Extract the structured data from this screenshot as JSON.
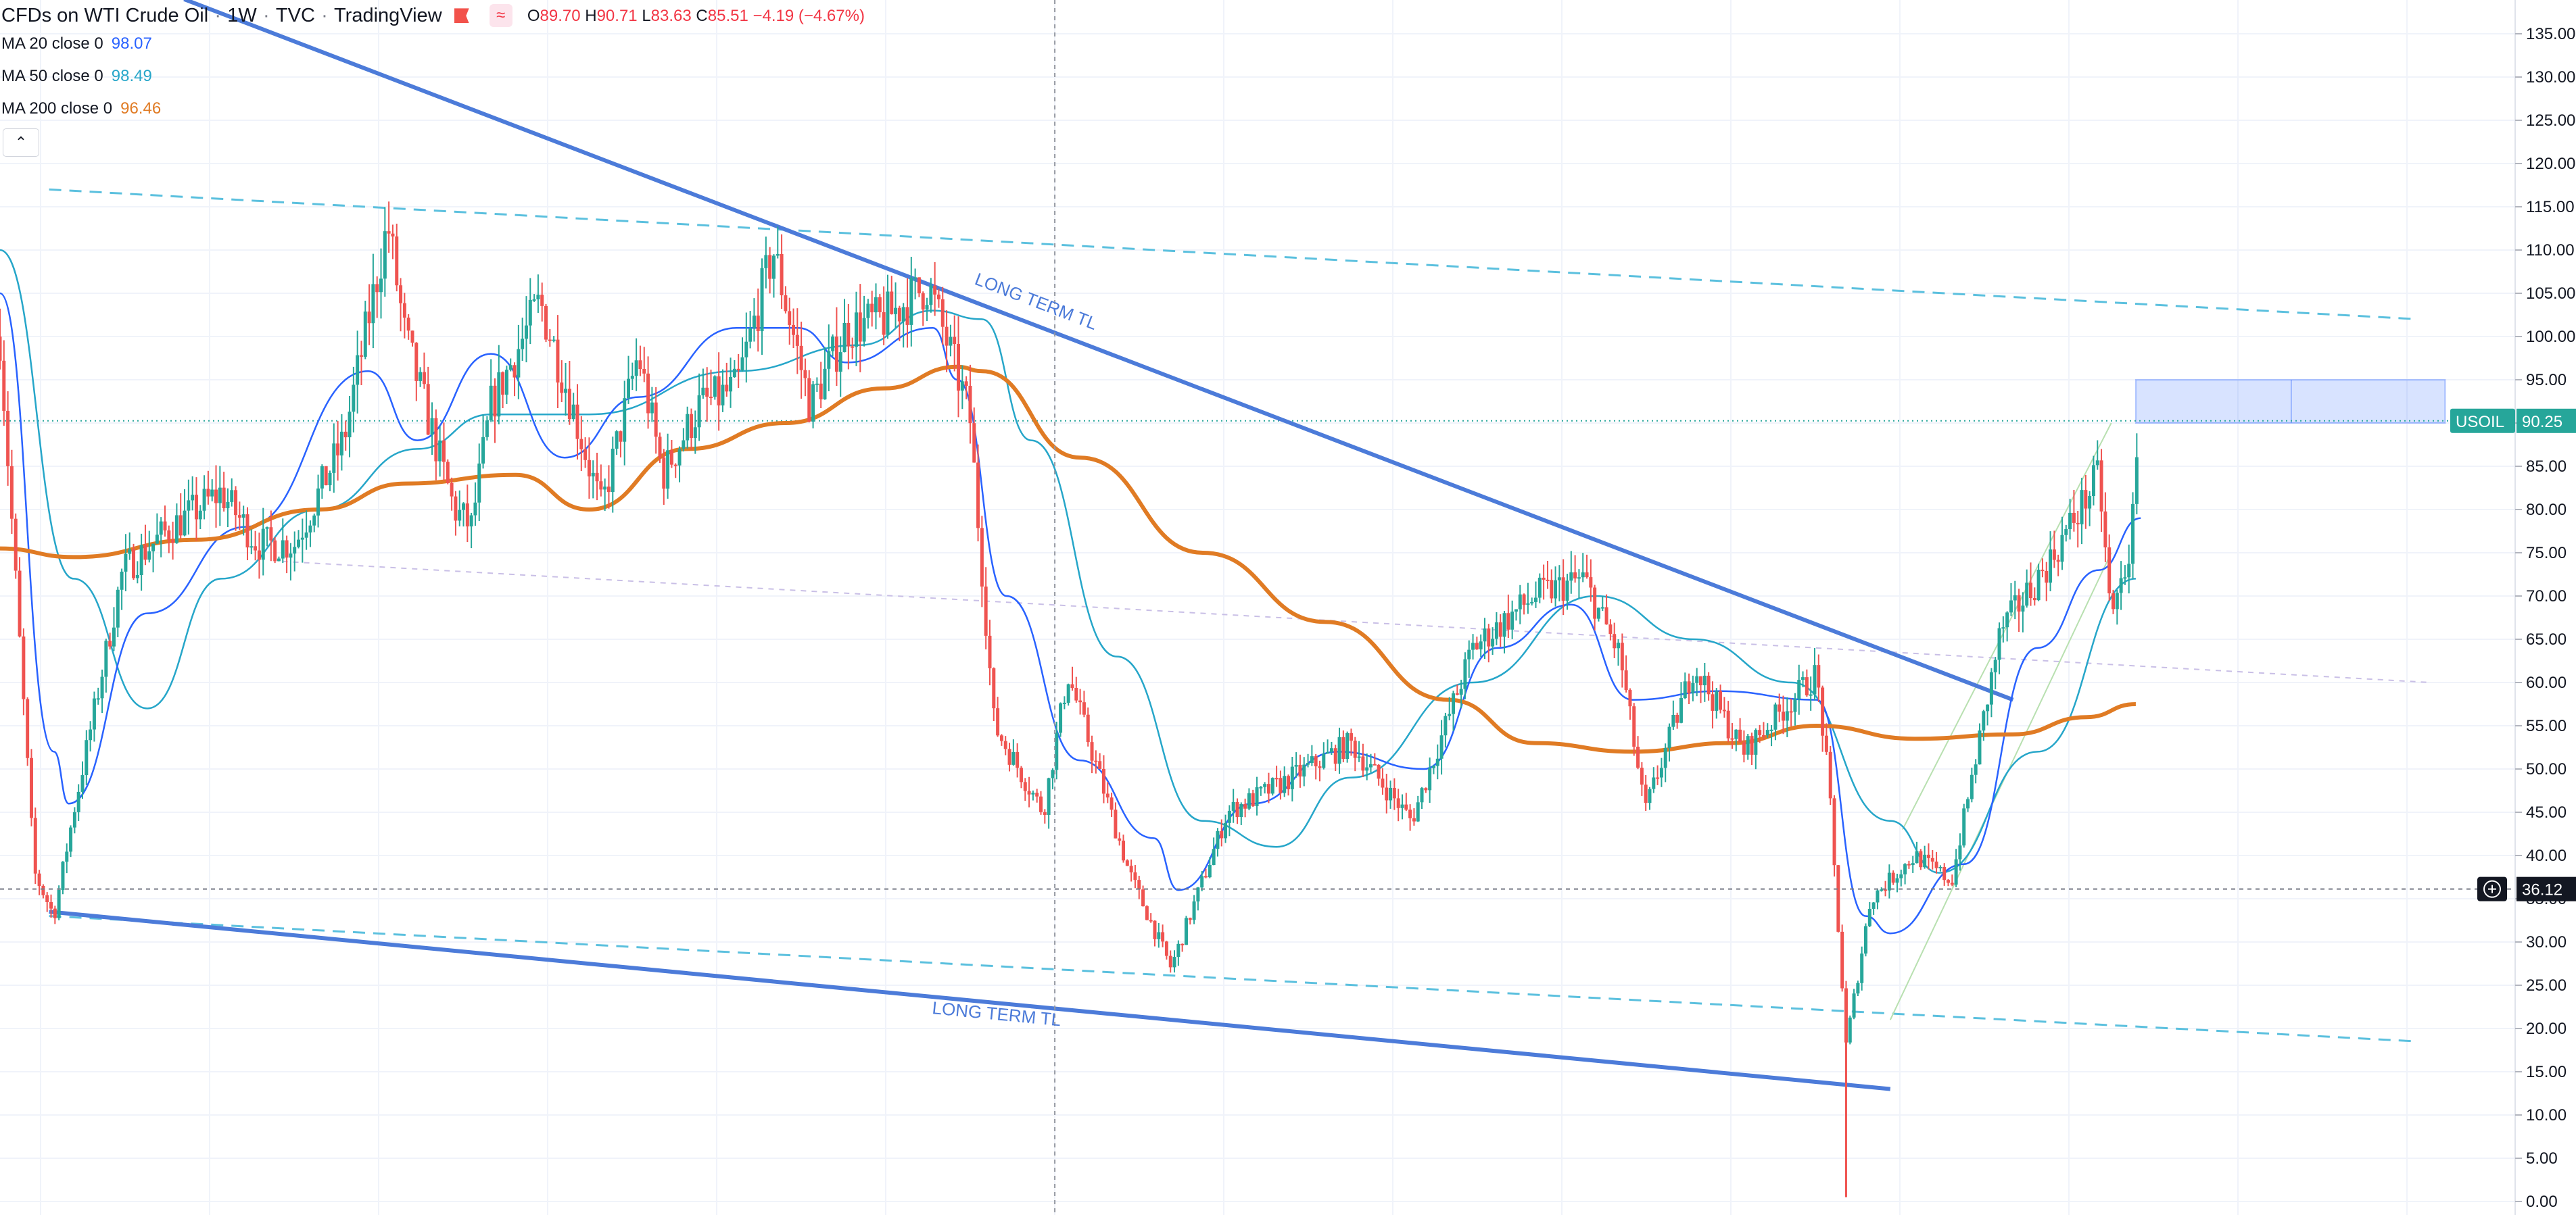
{
  "header": {
    "symbol": "CFDs on WTI Crude Oil",
    "interval": "1W",
    "exchange": "TVC",
    "provider": "TradingView",
    "ohlc": {
      "o_label": "O",
      "o": "89.70",
      "h_label": "H",
      "h": "90.71",
      "l_label": "L",
      "l": "83.63",
      "c_label": "C",
      "c": "85.51",
      "change": "−4.19 (−4.67%)"
    }
  },
  "indicators": [
    {
      "label": "MA 20 close 0",
      "value": "98.07",
      "color": "#2962ff"
    },
    {
      "label": "MA 50 close 0",
      "value": "98.49",
      "color": "#26a6c9"
    },
    {
      "label": "MA 200 close 0",
      "value": "96.46",
      "color": "#e07b24"
    }
  ],
  "collapse_icon": "chevron-up-icon",
  "annotations": [
    "LONG TERM TL",
    "LONG TERM TL"
  ],
  "price_tags": {
    "symbol_tag": {
      "label": "USOIL",
      "value": "90.25",
      "price": 90.25,
      "color": "#26a69a"
    },
    "crosshair_tag": {
      "value": "36.12",
      "price": 36.12,
      "color": "#131722"
    }
  },
  "chart_data": {
    "type": "candlestick",
    "title": "CFDs on WTI Crude Oil",
    "y_axis_ticks": [
      "135.00",
      "130.00",
      "125.00",
      "120.00",
      "115.00",
      "110.00",
      "105.00",
      "100.00",
      "95.00",
      "90.00",
      "85.00",
      "80.00",
      "75.00",
      "70.00",
      "65.00",
      "60.00",
      "55.00",
      "50.00",
      "45.00",
      "40.00",
      "35.00",
      "30.00",
      "25.00",
      "20.00",
      "15.00",
      "10.00",
      "5.00",
      "0.00"
    ],
    "ylim": [
      0,
      137
    ],
    "x_index_range": [
      0,
      1000
    ],
    "grid": true,
    "colors": {
      "up": "#26a69a",
      "down": "#ef5350"
    },
    "price_path": [
      [
        0,
        100
      ],
      [
        14,
        38
      ],
      [
        22,
        33
      ],
      [
        30,
        45
      ],
      [
        50,
        73
      ],
      [
        70,
        78
      ],
      [
        90,
        82
      ],
      [
        105,
        76
      ],
      [
        120,
        76
      ],
      [
        140,
        88
      ],
      [
        158,
        113
      ],
      [
        165,
        100
      ],
      [
        185,
        80
      ],
      [
        192,
        78
      ],
      [
        200,
        92
      ],
      [
        220,
        104
      ],
      [
        232,
        93
      ],
      [
        245,
        80
      ],
      [
        260,
        98
      ],
      [
        270,
        84
      ],
      [
        285,
        92
      ],
      [
        300,
        94
      ],
      [
        315,
        110
      ],
      [
        330,
        92
      ],
      [
        345,
        101
      ],
      [
        360,
        102
      ],
      [
        378,
        106
      ],
      [
        385,
        100
      ],
      [
        395,
        91
      ],
      [
        405,
        55
      ],
      [
        425,
        45
      ],
      [
        435,
        61
      ],
      [
        460,
        38
      ],
      [
        477,
        27
      ],
      [
        500,
        45
      ],
      [
        520,
        48
      ],
      [
        550,
        53
      ],
      [
        575,
        44
      ],
      [
        600,
        64
      ],
      [
        625,
        70
      ],
      [
        645,
        72
      ],
      [
        660,
        63
      ],
      [
        670,
        45
      ],
      [
        690,
        62
      ],
      [
        710,
        52
      ],
      [
        740,
        61
      ],
      [
        745,
        48
      ],
      [
        752,
        18
      ],
      [
        762,
        35
      ],
      [
        780,
        40
      ],
      [
        795,
        37
      ],
      [
        815,
        66
      ],
      [
        835,
        74
      ],
      [
        855,
        84
      ],
      [
        860,
        67
      ],
      [
        868,
        76
      ],
      [
        872,
        90
      ]
    ],
    "ma200": [
      [
        0,
        75.5
      ],
      [
        30,
        74.5
      ],
      [
        80,
        76.5
      ],
      [
        130,
        80
      ],
      [
        165,
        83
      ],
      [
        210,
        84
      ],
      [
        240,
        80
      ],
      [
        280,
        87
      ],
      [
        320,
        90
      ],
      [
        360,
        94
      ],
      [
        390,
        96.5
      ],
      [
        400,
        96
      ],
      [
        440,
        86
      ],
      [
        490,
        75
      ],
      [
        540,
        67
      ],
      [
        590,
        58
      ],
      [
        625,
        53
      ],
      [
        665,
        52
      ],
      [
        705,
        53
      ],
      [
        740,
        55
      ],
      [
        780,
        53.5
      ],
      [
        820,
        54
      ],
      [
        850,
        56
      ],
      [
        870,
        57.5
      ]
    ],
    "ma50": [
      [
        0,
        110
      ],
      [
        30,
        72
      ],
      [
        60,
        57
      ],
      [
        90,
        72
      ],
      [
        130,
        80
      ],
      [
        170,
        87
      ],
      [
        200,
        91
      ],
      [
        240,
        91
      ],
      [
        300,
        96
      ],
      [
        350,
        99
      ],
      [
        380,
        103
      ],
      [
        400,
        102
      ],
      [
        420,
        88
      ],
      [
        455,
        63
      ],
      [
        490,
        44
      ],
      [
        520,
        41
      ],
      [
        550,
        49
      ],
      [
        600,
        60
      ],
      [
        650,
        70
      ],
      [
        690,
        65
      ],
      [
        730,
        60
      ],
      [
        770,
        44
      ],
      [
        790,
        38
      ],
      [
        830,
        52
      ],
      [
        870,
        72
      ]
    ],
    "ma20": [
      [
        0,
        105
      ],
      [
        22,
        52
      ],
      [
        28,
        46
      ],
      [
        60,
        68
      ],
      [
        100,
        78
      ],
      [
        150,
        96
      ],
      [
        170,
        88
      ],
      [
        200,
        98
      ],
      [
        230,
        86
      ],
      [
        260,
        93
      ],
      [
        300,
        101
      ],
      [
        325,
        101
      ],
      [
        345,
        97
      ],
      [
        380,
        101
      ],
      [
        390,
        95
      ],
      [
        410,
        70
      ],
      [
        440,
        51
      ],
      [
        470,
        42
      ],
      [
        480,
        36
      ],
      [
        510,
        46
      ],
      [
        545,
        52
      ],
      [
        580,
        50
      ],
      [
        610,
        64
      ],
      [
        640,
        69
      ],
      [
        665,
        58
      ],
      [
        700,
        59
      ],
      [
        740,
        58
      ],
      [
        760,
        33
      ],
      [
        770,
        31
      ],
      [
        800,
        39
      ],
      [
        830,
        64
      ],
      [
        855,
        73
      ],
      [
        872,
        79
      ]
    ],
    "long_term_tl_upper": [
      [
        75,
        139
      ],
      [
        820,
        58
      ]
    ],
    "long_term_tl_lower": [
      [
        20,
        33.5
      ],
      [
        770,
        13
      ]
    ],
    "channel_upper_dashed": [
      [
        20,
        117
      ],
      [
        985,
        102
      ]
    ],
    "channel_lower_dashed": [
      [
        20,
        33
      ],
      [
        985,
        18.5
      ]
    ],
    "faint_dashed_line": [
      [
        115,
        74
      ],
      [
        990,
        60
      ]
    ],
    "rising_channel": [
      [
        [
          770,
          21
        ],
        [
          860,
          75
        ]
      ],
      [
        [
          775,
          43
        ],
        [
          860,
          90
        ]
      ]
    ],
    "target_zone": {
      "from_index": 870,
      "to_index": 996,
      "low": 90,
      "high": 95
    },
    "crosshair": {
      "index": 398,
      "price": 36.12
    },
    "last_price_line": 90.25
  }
}
